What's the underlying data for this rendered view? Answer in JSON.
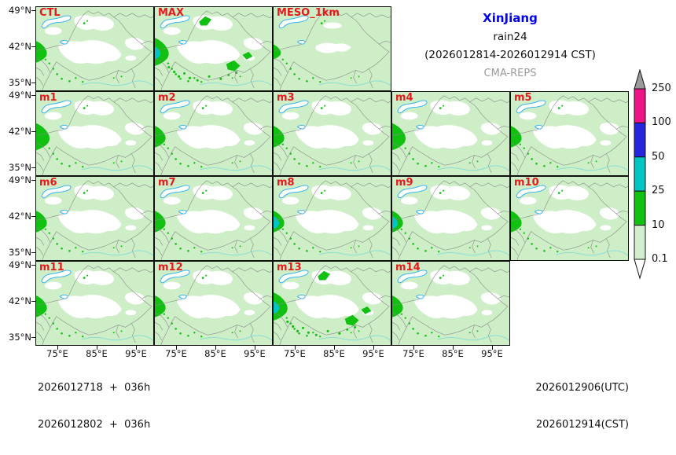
{
  "title": {
    "region": "XinJiang",
    "variable": "rain24",
    "period": "(2026012814-2026012914 CST)",
    "model": "CMA-REPS"
  },
  "panels": [
    {
      "label": "CTL",
      "row": 0,
      "col": 0,
      "variant": "normal"
    },
    {
      "label": "MAX",
      "row": 0,
      "col": 1,
      "variant": "heavy"
    },
    {
      "label": "MESO_1km",
      "row": 0,
      "col": 2,
      "variant": "meso"
    },
    {
      "label": "m1",
      "row": 1,
      "col": 0,
      "variant": "big"
    },
    {
      "label": "m2",
      "row": 1,
      "col": 1,
      "variant": "normal"
    },
    {
      "label": "m3",
      "row": 1,
      "col": 2,
      "variant": "normal"
    },
    {
      "label": "m4",
      "row": 1,
      "col": 3,
      "variant": "big"
    },
    {
      "label": "m5",
      "row": 1,
      "col": 4,
      "variant": "normal"
    },
    {
      "label": "m6",
      "row": 2,
      "col": 0,
      "variant": "normal"
    },
    {
      "label": "m7",
      "row": 2,
      "col": 1,
      "variant": "normal"
    },
    {
      "label": "m8",
      "row": 2,
      "col": 2,
      "variant": "teal"
    },
    {
      "label": "m9",
      "row": 2,
      "col": 3,
      "variant": "teal"
    },
    {
      "label": "m10",
      "row": 2,
      "col": 4,
      "variant": "normal"
    },
    {
      "label": "m11",
      "row": 3,
      "col": 0,
      "variant": "normal"
    },
    {
      "label": "m12",
      "row": 3,
      "col": 1,
      "variant": "normal"
    },
    {
      "label": "m13",
      "row": 3,
      "col": 2,
      "variant": "heavy"
    },
    {
      "label": "m14",
      "row": 3,
      "col": 3,
      "variant": "normal"
    }
  ],
  "axes": {
    "lat_ticks": [
      "49°N",
      "42°N",
      "35°N"
    ],
    "lon_ticks": [
      "75°E",
      "85°E",
      "95°E"
    ]
  },
  "colorbar": {
    "tick_labels": [
      "250",
      "100",
      "50",
      "25",
      "10",
      "0.1"
    ],
    "segment_colors_top_to_bottom": [
      "#ed1485",
      "#2626dd",
      "#00c5c5",
      "#11c011",
      "#d2eecd"
    ],
    "over_color": "#9a9a9a",
    "under_color": "#ffffff"
  },
  "footer": {
    "left_lines": [
      "2026012718  +  036h",
      "2026012802  +  036h"
    ],
    "right_lines": [
      "2026012906(UTC)",
      "2026012914(CST)"
    ]
  },
  "colors": {
    "rain_light": "#cdeec6",
    "rain_green": "#11c011",
    "rain_teal": "#00c5c5",
    "rain_blue": "#2626dd",
    "rain_magenta": "#ed1485",
    "over_gray": "#9a9a9a",
    "lake_blue": "#3cb4f0",
    "river_cyan": "#82dcd8",
    "border_gray": "#8a8a8a",
    "label_red": "#e41a1c",
    "title_blue": "#0000ee",
    "subtitle_gray": "#9a9a9a"
  },
  "chart_data": {
    "type": "heatmap",
    "subtype": "multi-panel precipitation maps (ensemble forecast)",
    "title": "XinJiang rain24 (2026012814-2026012914 CST) CMA-REPS",
    "panel_labels": [
      "CTL",
      "MAX",
      "MESO_1km",
      "m1",
      "m2",
      "m3",
      "m4",
      "m5",
      "m6",
      "m7",
      "m8",
      "m9",
      "m10",
      "m11",
      "m12",
      "m13",
      "m14"
    ],
    "grid": {
      "rows": 4,
      "cols": 5,
      "row1_panels": 3,
      "row4_panels": 4
    },
    "x_tick_labels": [
      "75°E",
      "85°E",
      "95°E"
    ],
    "y_tick_labels": [
      "49°N",
      "42°N",
      "35°N"
    ],
    "xlim_deg_east": [
      69.5,
      99.5
    ],
    "ylim_deg_north": [
      33.5,
      50.5
    ],
    "colorbar_levels_mm": [
      0.1,
      10,
      25,
      50,
      100,
      250
    ],
    "colorbar_colors_low_to_high": [
      "#d2eecd",
      "#11c011",
      "#00c5c5",
      "#2626dd",
      "#ed1485"
    ],
    "init_times": [
      "2026012718 + 036h",
      "2026012802 + 036h"
    ],
    "valid_times": [
      "2026012906(UTC)",
      "2026012914(CST)"
    ]
  }
}
